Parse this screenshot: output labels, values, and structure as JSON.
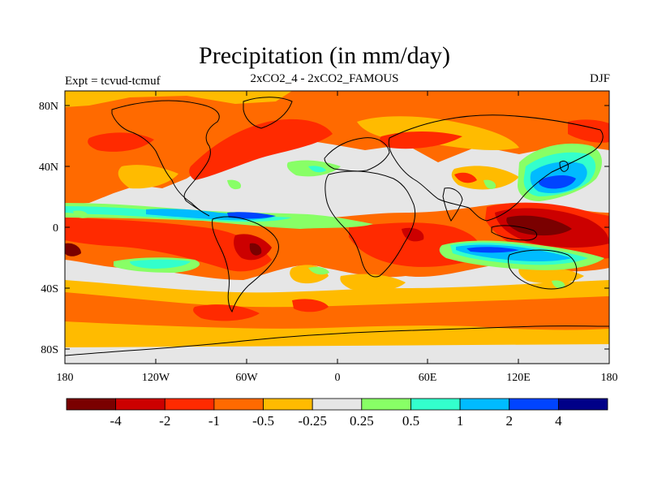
{
  "header": {
    "title": "Precipitation (in mm/day)",
    "subtitle": "2xCO2_4 - 2xCO2_FAMOUS",
    "left_label": "Expt = tcvud-tcmuf",
    "right_label": "DJF"
  },
  "map": {
    "lon_ticks": [
      "180",
      "120W",
      "60W",
      "0",
      "60E",
      "120E",
      "180"
    ],
    "lat_ticks": [
      "80N",
      "40N",
      "0",
      "40S",
      "80S"
    ],
    "lon_range": [
      -180,
      180
    ],
    "lat_range": [
      -90,
      90
    ],
    "projection": "cylindrical-equidistant"
  },
  "legend": {
    "colors": [
      "#7a0000",
      "#cc0000",
      "#ff2a00",
      "#ff6a00",
      "#ffbb00",
      "#e6e6e6",
      "#88ff66",
      "#33ffcc",
      "#00bbff",
      "#0044ff",
      "#000088"
    ],
    "labels": [
      "-4",
      "-2",
      "-1",
      "-0.5",
      "-0.25",
      "0.25",
      "0.5",
      "1",
      "2",
      "4"
    ]
  }
}
